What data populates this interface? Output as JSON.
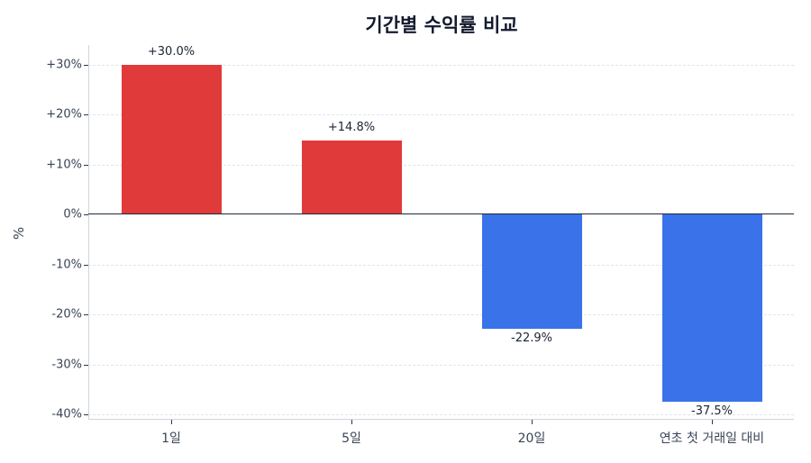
{
  "chart_data": {
    "type": "bar",
    "title": "기간별 수익률 비교",
    "xlabel": "",
    "ylabel": "%",
    "categories": [
      "1일",
      "5일",
      "20일",
      "연초 첫 거래일 대비"
    ],
    "values": [
      30.0,
      14.8,
      -22.9,
      -37.5
    ],
    "value_labels": [
      "+30.0%",
      "+14.8%",
      "-22.9%",
      "-37.5%"
    ],
    "ylim": [
      -41,
      33.5
    ],
    "yticks": [
      30,
      20,
      10,
      0,
      -10,
      -20,
      -30,
      -40
    ],
    "ytick_labels": [
      "+30%",
      "+20%",
      "+10%",
      "0%",
      "-10%",
      "-20%",
      "-30%",
      "-40%"
    ],
    "grid": true,
    "grid_style": "dashed horizontal",
    "legend": null,
    "colors": {
      "positive": "#e03a3a",
      "negative": "#3a72ea",
      "zero_line": "#1e293b"
    }
  }
}
